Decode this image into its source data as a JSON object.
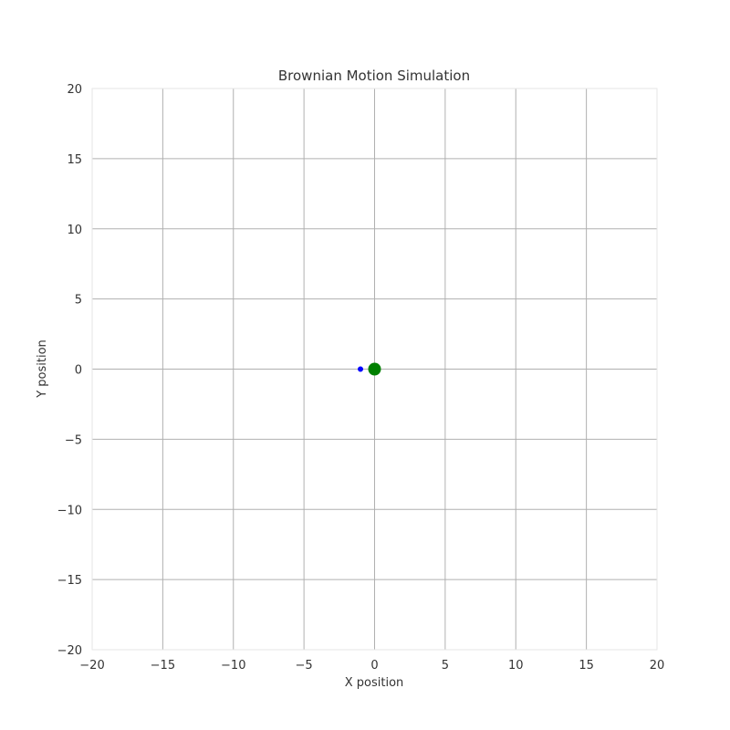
{
  "chart_data": {
    "type": "scatter",
    "title": "Brownian Motion Simulation",
    "xlabel": "X position",
    "ylabel": "Y position",
    "xlim": [
      -20,
      20
    ],
    "ylim": [
      -20,
      20
    ],
    "xticks": [
      -20,
      -15,
      -10,
      -5,
      0,
      5,
      10,
      15,
      20
    ],
    "yticks": [
      -20,
      -15,
      -10,
      -5,
      0,
      5,
      10,
      15,
      20
    ],
    "xtick_labels": [
      "−20",
      "−15",
      "−10",
      "−5",
      "0",
      "5",
      "10",
      "15",
      "20"
    ],
    "ytick_labels": [
      "−20",
      "−15",
      "−10",
      "−5",
      "0",
      "5",
      "10",
      "15",
      "20"
    ],
    "grid": true,
    "series": [
      {
        "points": [
          [
            -1.0,
            0.0
          ]
        ],
        "color": "#0000ff",
        "marker_size": "small"
      },
      {
        "points": [
          [
            0.0,
            0.0
          ]
        ],
        "color": "#008000",
        "marker_size": "large"
      }
    ]
  }
}
